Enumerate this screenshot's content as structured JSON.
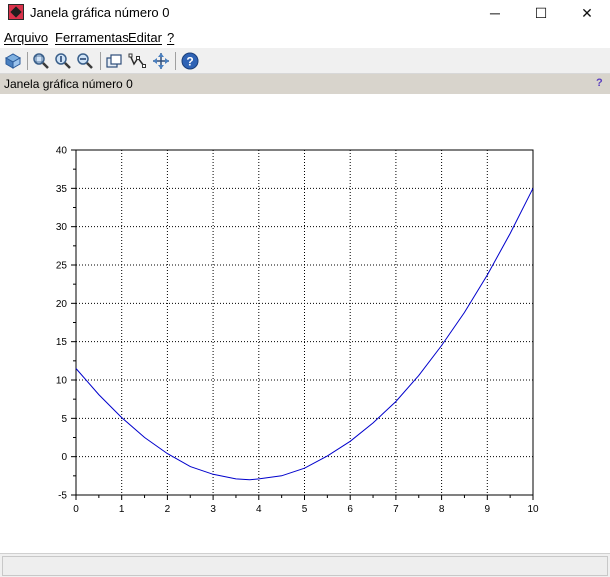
{
  "window": {
    "title": "Janela gráfica número 0",
    "icon": "scilab-icon",
    "controls": {
      "minimize": "─",
      "maximize": "☐",
      "close": "✕"
    }
  },
  "menubar": {
    "items": [
      {
        "label": "Arquivo"
      },
      {
        "label": "Ferramentas"
      },
      {
        "label": "Editar"
      },
      {
        "label": "?"
      }
    ]
  },
  "toolbar": {
    "buttons": [
      {
        "icon": "rotate-icon"
      },
      {
        "icon": "zoom-in-icon"
      },
      {
        "icon": "zoom-original-icon"
      },
      {
        "icon": "zoom-out-icon"
      },
      {
        "icon": "new-window-icon"
      },
      {
        "icon": "datatip-icon"
      },
      {
        "icon": "pan-icon"
      },
      {
        "icon": "help-icon"
      }
    ]
  },
  "infobar": {
    "title": "Janela gráfica número 0",
    "help": "?"
  },
  "chart_data": {
    "type": "line",
    "title": "",
    "xlabel": "",
    "ylabel": "",
    "xlim": [
      0,
      10
    ],
    "ylim": [
      -5,
      40
    ],
    "xticks": [
      0,
      1,
      2,
      3,
      4,
      5,
      6,
      7,
      8,
      9,
      10
    ],
    "yticks": [
      -5,
      0,
      5,
      10,
      15,
      20,
      25,
      30,
      35,
      40
    ],
    "grid": true,
    "series": [
      {
        "color": "#0000cc",
        "x": [
          0,
          0.5,
          1,
          1.5,
          2,
          2.5,
          3,
          3.5,
          3.8,
          4,
          4.5,
          5,
          5.5,
          6,
          6.5,
          7,
          7.5,
          8,
          8.5,
          9,
          9.5,
          10
        ],
        "y": [
          11.5,
          8.1,
          5.1,
          2.5,
          0.4,
          -1.3,
          -2.3,
          -2.9,
          -3.0,
          -2.9,
          -2.5,
          -1.5,
          0.1,
          2.0,
          4.4,
          7.2,
          10.6,
          14.5,
          18.8,
          23.7,
          29.1,
          35.0
        ]
      }
    ]
  }
}
